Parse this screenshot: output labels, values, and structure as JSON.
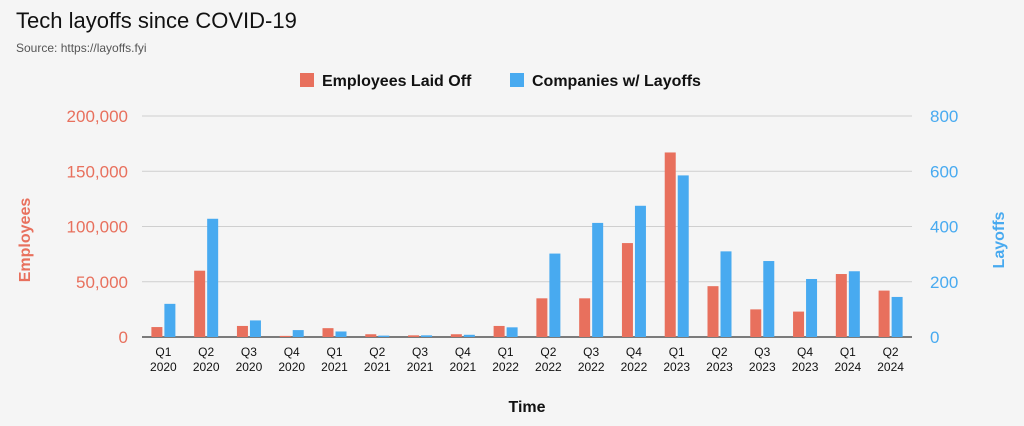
{
  "chart_data": {
    "type": "bar",
    "title": "Tech layoffs since COVID-19",
    "subtitle": "Source: https://layoffs.fyi",
    "xlabel": "Time",
    "ylabel_left": "Employees",
    "ylabel_right": "Layoffs",
    "categories": [
      [
        "Q1",
        "2020"
      ],
      [
        "Q2",
        "2020"
      ],
      [
        "Q3",
        "2020"
      ],
      [
        "Q4",
        "2020"
      ],
      [
        "Q1",
        "2021"
      ],
      [
        "Q2",
        "2021"
      ],
      [
        "Q3",
        "2021"
      ],
      [
        "Q4",
        "2021"
      ],
      [
        "Q1",
        "2022"
      ],
      [
        "Q2",
        "2022"
      ],
      [
        "Q3",
        "2022"
      ],
      [
        "Q4",
        "2022"
      ],
      [
        "Q1",
        "2023"
      ],
      [
        "Q2",
        "2023"
      ],
      [
        "Q3",
        "2023"
      ],
      [
        "Q4",
        "2023"
      ],
      [
        "Q1",
        "2024"
      ],
      [
        "Q2",
        "2024"
      ]
    ],
    "series": [
      {
        "name": "Employees Laid Off",
        "axis": "left",
        "color": "#e8705d",
        "values": [
          9000,
          60000,
          10000,
          1000,
          8000,
          2500,
          1500,
          2500,
          10000,
          35000,
          35000,
          85000,
          167000,
          46000,
          25000,
          23000,
          57000,
          42000
        ]
      },
      {
        "name": "Companies w/ Layoffs",
        "axis": "right",
        "color": "#48aaf0",
        "values": [
          120,
          428,
          60,
          25,
          20,
          5,
          6,
          8,
          35,
          302,
          413,
          475,
          585,
          310,
          275,
          210,
          238,
          145
        ]
      }
    ],
    "ylim_left": [
      0,
      200000
    ],
    "ylim_right": [
      0,
      800
    ],
    "yticks_left": [
      "0",
      "50,000",
      "100,000",
      "150,000",
      "200,000"
    ],
    "yticks_right": [
      "0",
      "200",
      "400",
      "600",
      "800"
    ],
    "grid": true,
    "legend_position": "top-center"
  }
}
